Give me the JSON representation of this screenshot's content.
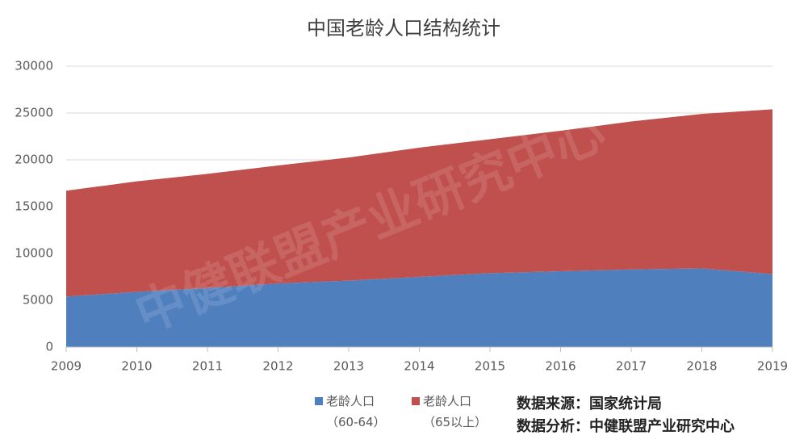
{
  "chart_data": {
    "type": "stacked-area",
    "title": "中国老龄人口结构统计",
    "x": [
      2009,
      2010,
      2011,
      2012,
      2013,
      2014,
      2015,
      2016,
      2017,
      2018,
      2019
    ],
    "xlim": [
      2009,
      2019
    ],
    "xticks": [
      2009,
      2010,
      2011,
      2012,
      2013,
      2014,
      2015,
      2016,
      2017,
      2018,
      2019
    ],
    "series": [
      {
        "name": "老龄人口（60-64）",
        "color": "#4f7fbd",
        "values": [
          5400,
          5900,
          6300,
          6800,
          7100,
          7500,
          7900,
          8100,
          8300,
          8400,
          7800
        ]
      },
      {
        "name": "老龄人口（65以上）",
        "color": "#c0504d",
        "values": [
          11300,
          11800,
          12200,
          12600,
          13150,
          13800,
          14300,
          15000,
          15800,
          16500,
          17600
        ]
      }
    ],
    "ylim": [
      0,
      30000
    ],
    "yticks": [
      0,
      5000,
      10000,
      15000,
      20000,
      25000,
      30000
    ],
    "grid": true,
    "legend": "bottom",
    "source": "数据来源：国家统计局",
    "analysis": "数据分析：中健联盟产业研究中心",
    "watermark": "中健联盟产业研究中心"
  }
}
